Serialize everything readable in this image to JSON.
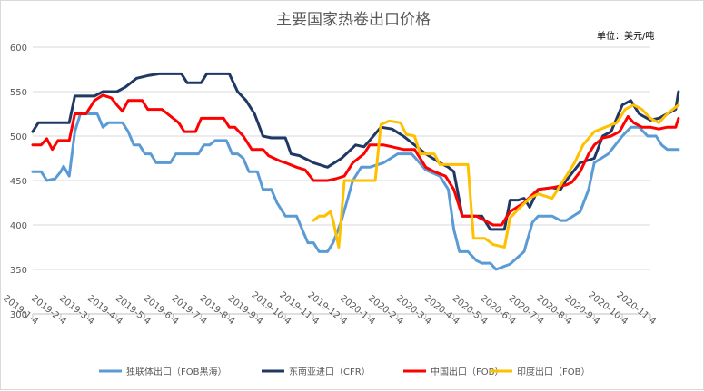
{
  "chart_data": {
    "type": "line",
    "title": "主要国家热卷出口价格",
    "unit_label": "单位：美元/吨",
    "ylim": [
      300,
      600
    ],
    "yticks": [
      300,
      350,
      400,
      450,
      500,
      550,
      600
    ],
    "grid": "horizontal",
    "legend_position": "bottom",
    "x_tick_labels": [
      "2019-1-4",
      "2019-2-4",
      "2019-3-4",
      "2019-4-4",
      "2019-5-4",
      "2019-6-4",
      "2019-7-4",
      "2019-8-4",
      "2019-9-4",
      "2019-10-4",
      "2019-11-4",
      "2019-12-4",
      "2020-1-4",
      "2020-2-4",
      "2020-3-4",
      "2020-4-4",
      "2020-5-4",
      "2020-6-4",
      "2020-7-4",
      "2020-8-4",
      "2020-9-4",
      "2020-10-4",
      "2020-11-4"
    ],
    "series": [
      {
        "name": "独联体出口（FOB黑海）",
        "color": "#5b9bd5",
        "points": [
          [
            0,
            460
          ],
          [
            0.3,
            460
          ],
          [
            0.5,
            450
          ],
          [
            0.8,
            452
          ],
          [
            1.0,
            460
          ],
          [
            1.1,
            466
          ],
          [
            1.3,
            455
          ],
          [
            1.5,
            505
          ],
          [
            1.7,
            525
          ],
          [
            2.3,
            525
          ],
          [
            2.5,
            510
          ],
          [
            2.7,
            515
          ],
          [
            3.2,
            515
          ],
          [
            3.4,
            505
          ],
          [
            3.6,
            490
          ],
          [
            3.8,
            490
          ],
          [
            4.0,
            480
          ],
          [
            4.2,
            480
          ],
          [
            4.4,
            470
          ],
          [
            4.9,
            470
          ],
          [
            5.1,
            480
          ],
          [
            5.9,
            480
          ],
          [
            6.1,
            490
          ],
          [
            6.3,
            490
          ],
          [
            6.5,
            495
          ],
          [
            6.9,
            495
          ],
          [
            7.1,
            480
          ],
          [
            7.3,
            480
          ],
          [
            7.5,
            475
          ],
          [
            7.7,
            460
          ],
          [
            8.0,
            460
          ],
          [
            8.2,
            440
          ],
          [
            8.5,
            440
          ],
          [
            8.7,
            425
          ],
          [
            9.0,
            410
          ],
          [
            9.4,
            410
          ],
          [
            9.6,
            395
          ],
          [
            9.8,
            380
          ],
          [
            10.0,
            380
          ],
          [
            10.2,
            370
          ],
          [
            10.5,
            370
          ],
          [
            10.7,
            380
          ],
          [
            11.0,
            405
          ],
          [
            11.4,
            450
          ],
          [
            11.7,
            465
          ],
          [
            12.0,
            465
          ],
          [
            12.5,
            470
          ],
          [
            13.0,
            480
          ],
          [
            13.5,
            480
          ],
          [
            14.0,
            462
          ],
          [
            14.5,
            455
          ],
          [
            14.8,
            440
          ],
          [
            15.0,
            395
          ],
          [
            15.2,
            370
          ],
          [
            15.5,
            370
          ],
          [
            15.8,
            360
          ],
          [
            16.0,
            357
          ],
          [
            16.3,
            357
          ],
          [
            16.5,
            350
          ],
          [
            17.0,
            356
          ],
          [
            17.5,
            370
          ],
          [
            17.8,
            403
          ],
          [
            18.0,
            410
          ],
          [
            18.5,
            410
          ],
          [
            18.8,
            405
          ],
          [
            19.0,
            405
          ],
          [
            19.5,
            415
          ],
          [
            19.8,
            440
          ],
          [
            20.0,
            470
          ],
          [
            20.5,
            480
          ],
          [
            21.0,
            500
          ],
          [
            21.3,
            510
          ],
          [
            21.6,
            510
          ],
          [
            21.9,
            500
          ],
          [
            22.2,
            500
          ],
          [
            22.4,
            490
          ],
          [
            22.6,
            485
          ],
          [
            23.0,
            485
          ]
        ]
      },
      {
        "name": "东南亚进口（CFR）",
        "color": "#203864",
        "points": [
          [
            0,
            505
          ],
          [
            0.2,
            515
          ],
          [
            1.0,
            515
          ],
          [
            1.3,
            515
          ],
          [
            1.5,
            545
          ],
          [
            2.2,
            545
          ],
          [
            2.5,
            550
          ],
          [
            3.0,
            550
          ],
          [
            3.3,
            555
          ],
          [
            3.7,
            565
          ],
          [
            4.1,
            568
          ],
          [
            4.5,
            570
          ],
          [
            5.3,
            570
          ],
          [
            5.5,
            560
          ],
          [
            6.0,
            560
          ],
          [
            6.2,
            570
          ],
          [
            7.0,
            570
          ],
          [
            7.3,
            550
          ],
          [
            7.6,
            540
          ],
          [
            7.9,
            525
          ],
          [
            8.2,
            500
          ],
          [
            8.5,
            498
          ],
          [
            9.0,
            498
          ],
          [
            9.2,
            480
          ],
          [
            9.5,
            478
          ],
          [
            10.0,
            470
          ],
          [
            10.5,
            465
          ],
          [
            11.0,
            475
          ],
          [
            11.5,
            490
          ],
          [
            11.8,
            488
          ],
          [
            12.0,
            495
          ],
          [
            12.4,
            510
          ],
          [
            12.8,
            508
          ],
          [
            13.2,
            500
          ],
          [
            13.6,
            490
          ],
          [
            14.0,
            480
          ],
          [
            14.5,
            470
          ],
          [
            14.8,
            465
          ],
          [
            15.0,
            460
          ],
          [
            15.3,
            410
          ],
          [
            16.0,
            410
          ],
          [
            16.3,
            395
          ],
          [
            16.8,
            395
          ],
          [
            17.0,
            428
          ],
          [
            17.3,
            428
          ],
          [
            17.5,
            430
          ],
          [
            17.7,
            420
          ],
          [
            18.0,
            440
          ],
          [
            18.5,
            442
          ],
          [
            18.8,
            440
          ],
          [
            19.0,
            450
          ],
          [
            19.5,
            470
          ],
          [
            20.0,
            475
          ],
          [
            20.3,
            500
          ],
          [
            20.6,
            505
          ],
          [
            21.0,
            535
          ],
          [
            21.3,
            540
          ],
          [
            21.6,
            525
          ],
          [
            22.0,
            518
          ],
          [
            22.3,
            520
          ],
          [
            22.6,
            525
          ],
          [
            22.9,
            530
          ],
          [
            23.0,
            550
          ]
        ]
      },
      {
        "name": "中国出口（FOB）",
        "color": "#ff0000",
        "points": [
          [
            0,
            490
          ],
          [
            0.3,
            490
          ],
          [
            0.5,
            497
          ],
          [
            0.7,
            485
          ],
          [
            0.9,
            495
          ],
          [
            1.3,
            495
          ],
          [
            1.5,
            525
          ],
          [
            1.9,
            525
          ],
          [
            2.2,
            540
          ],
          [
            2.5,
            546
          ],
          [
            2.8,
            543
          ],
          [
            3.0,
            535
          ],
          [
            3.2,
            528
          ],
          [
            3.4,
            540
          ],
          [
            3.9,
            540
          ],
          [
            4.1,
            530
          ],
          [
            4.6,
            530
          ],
          [
            4.8,
            525
          ],
          [
            5.2,
            515
          ],
          [
            5.4,
            505
          ],
          [
            5.8,
            505
          ],
          [
            6.0,
            520
          ],
          [
            6.8,
            520
          ],
          [
            7.0,
            510
          ],
          [
            7.2,
            510
          ],
          [
            7.5,
            500
          ],
          [
            7.8,
            485
          ],
          [
            8.2,
            485
          ],
          [
            8.4,
            478
          ],
          [
            8.8,
            472
          ],
          [
            9.0,
            470
          ],
          [
            9.4,
            465
          ],
          [
            9.7,
            462
          ],
          [
            10.0,
            450
          ],
          [
            10.5,
            450
          ],
          [
            10.8,
            452
          ],
          [
            11.1,
            455
          ],
          [
            11.4,
            470
          ],
          [
            11.8,
            480
          ],
          [
            12.0,
            490
          ],
          [
            12.5,
            490
          ],
          [
            12.8,
            488
          ],
          [
            13.2,
            485
          ],
          [
            13.6,
            485
          ],
          [
            14.0,
            465
          ],
          [
            14.3,
            460
          ],
          [
            14.7,
            455
          ],
          [
            15.0,
            440
          ],
          [
            15.3,
            410
          ],
          [
            15.8,
            410
          ],
          [
            16.1,
            405
          ],
          [
            16.4,
            400
          ],
          [
            16.7,
            400
          ],
          [
            17.0,
            415
          ],
          [
            17.5,
            425
          ],
          [
            18.0,
            440
          ],
          [
            18.5,
            442
          ],
          [
            19.0,
            445
          ],
          [
            19.2,
            448
          ],
          [
            19.5,
            460
          ],
          [
            19.8,
            480
          ],
          [
            20.0,
            490
          ],
          [
            20.3,
            498
          ],
          [
            20.6,
            500
          ],
          [
            20.9,
            505
          ],
          [
            21.2,
            522
          ],
          [
            21.4,
            515
          ],
          [
            21.7,
            510
          ],
          [
            22.0,
            510
          ],
          [
            22.3,
            508
          ],
          [
            22.6,
            510
          ],
          [
            22.9,
            510
          ],
          [
            23.0,
            520
          ]
        ]
      },
      {
        "name": "印度出口（FOB）",
        "color": "#ffc000",
        "points": [
          [
            10.0,
            405
          ],
          [
            10.2,
            410
          ],
          [
            10.4,
            410
          ],
          [
            10.6,
            415
          ],
          [
            10.7,
            405
          ],
          [
            10.9,
            375
          ],
          [
            11.1,
            450
          ],
          [
            12.0,
            450
          ],
          [
            12.2,
            450
          ],
          [
            12.4,
            513
          ],
          [
            12.7,
            517
          ],
          [
            13.1,
            515
          ],
          [
            13.3,
            502
          ],
          [
            13.6,
            500
          ],
          [
            13.8,
            480
          ],
          [
            14.3,
            480
          ],
          [
            14.5,
            468
          ],
          [
            15.5,
            468
          ],
          [
            15.7,
            385
          ],
          [
            16.1,
            385
          ],
          [
            16.4,
            378
          ],
          [
            16.8,
            375
          ],
          [
            17.0,
            408
          ],
          [
            17.3,
            418
          ],
          [
            17.7,
            430
          ],
          [
            18.0,
            435
          ],
          [
            18.5,
            430
          ],
          [
            18.7,
            440
          ],
          [
            19.0,
            455
          ],
          [
            19.3,
            470
          ],
          [
            19.6,
            490
          ],
          [
            20.0,
            505
          ],
          [
            20.4,
            510
          ],
          [
            20.8,
            515
          ],
          [
            21.1,
            530
          ],
          [
            21.4,
            535
          ],
          [
            21.7,
            530
          ],
          [
            22.0,
            520
          ],
          [
            22.3,
            515
          ],
          [
            22.6,
            525
          ],
          [
            23.0,
            535
          ]
        ]
      }
    ]
  }
}
